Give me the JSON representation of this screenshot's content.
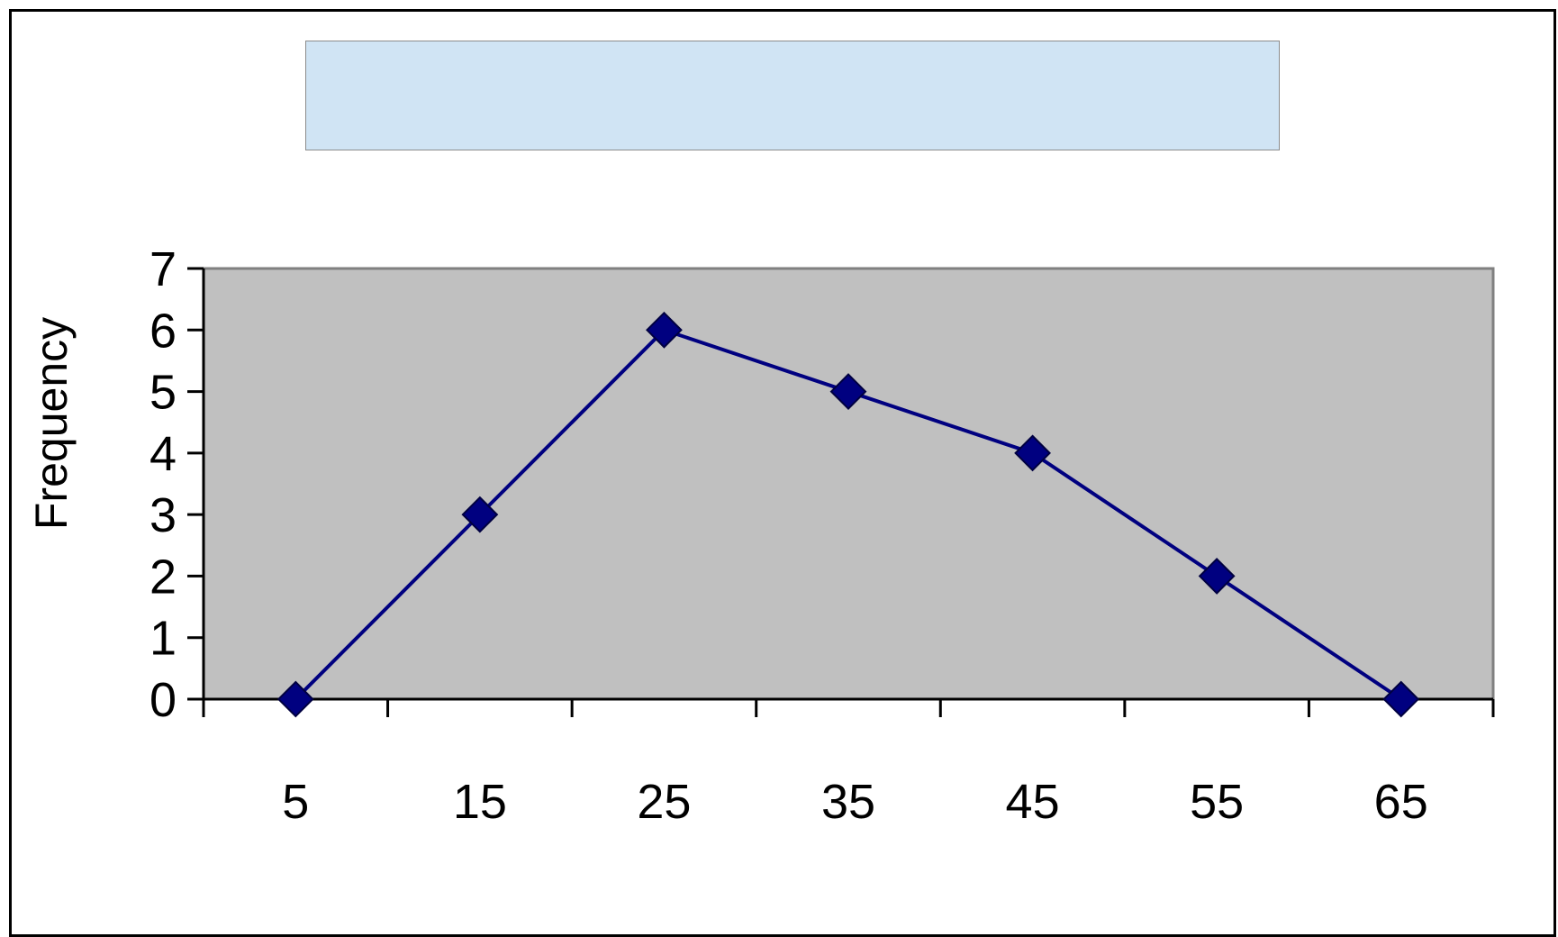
{
  "colors": {
    "plot_background": "#c0c0c0",
    "series_line": "#000080",
    "title_box": "#d0e4f4",
    "frame": "#000000"
  },
  "chart_data": {
    "type": "line",
    "title": "",
    "xlabel": "",
    "ylabel": "Frequency",
    "x": [
      5,
      15,
      25,
      35,
      45,
      55,
      65
    ],
    "categories": [
      "5",
      "15",
      "25",
      "35",
      "45",
      "55",
      "65"
    ],
    "series": [
      {
        "values": [
          0,
          3,
          6,
          5,
          4,
          2,
          0
        ],
        "marker": "diamond"
      }
    ],
    "ylim": [
      0,
      7
    ],
    "yticks": [
      0,
      1,
      2,
      3,
      4,
      5,
      6,
      7
    ],
    "grid": false,
    "legend": "none"
  }
}
